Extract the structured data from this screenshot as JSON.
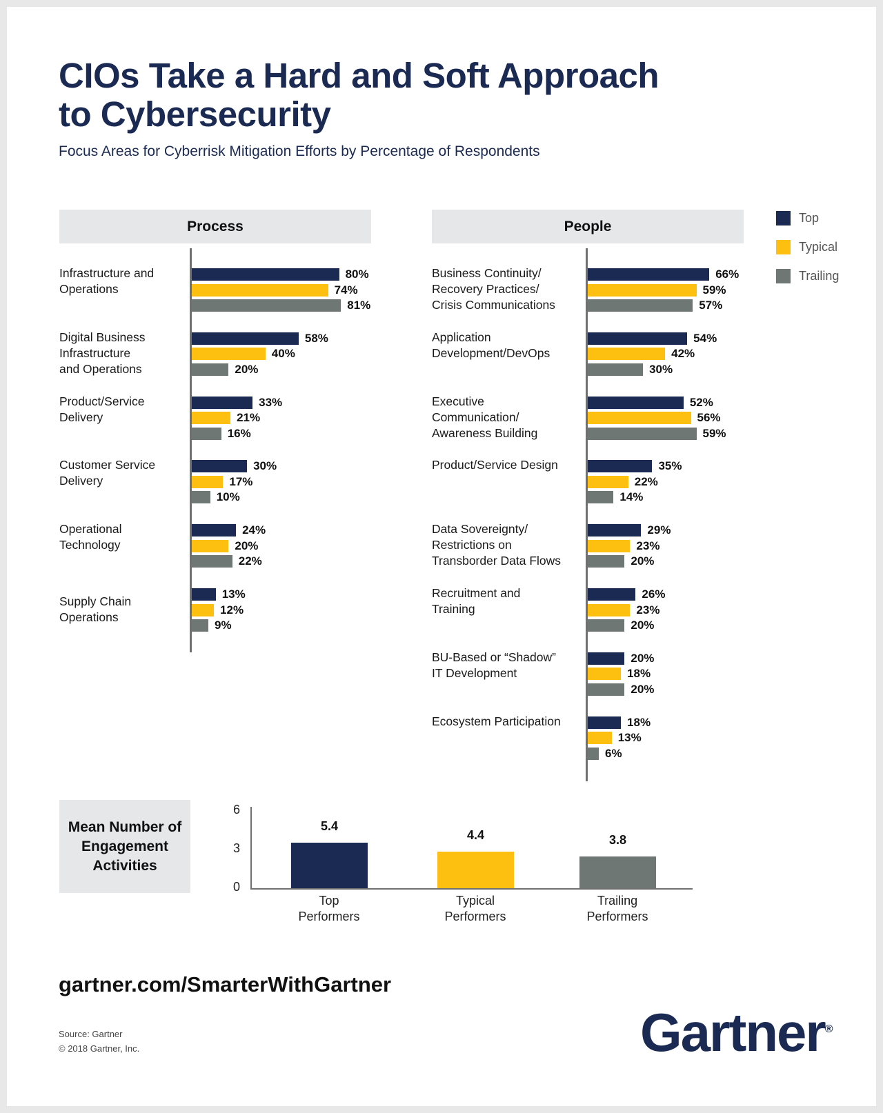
{
  "title_line1": "CIOs Take a Hard and Soft Approach",
  "title_line2": "to Cybersecurity",
  "subtitle": "Focus Areas for Cyberrisk Mitigation Efforts by Percentage of Respondents",
  "colors": {
    "top": "#1b2a52",
    "typical": "#fdc010",
    "trailing": "#6f7774"
  },
  "legend": [
    "Top",
    "Typical",
    "Trailing"
  ],
  "chart_data": [
    {
      "type": "bar",
      "orientation": "horizontal",
      "title": "Process",
      "unit": "%",
      "categories": [
        "Infrastructure and\nOperations",
        "Digital Business\nInfrastructure\nand Operations",
        "Product/Service\nDelivery",
        "Customer Service\nDelivery",
        "Operational\nTechnology",
        "Supply Chain\nOperations"
      ],
      "series": [
        {
          "name": "Top",
          "values": [
            80,
            58,
            33,
            30,
            24,
            13
          ]
        },
        {
          "name": "Typical",
          "values": [
            74,
            40,
            21,
            17,
            20,
            12
          ]
        },
        {
          "name": "Trailing",
          "values": [
            81,
            20,
            16,
            10,
            22,
            9
          ]
        }
      ]
    },
    {
      "type": "bar",
      "orientation": "horizontal",
      "title": "People",
      "unit": "%",
      "categories": [
        "Business Continuity/\nRecovery Practices/\nCrisis Communications",
        "Application\nDevelopment/DevOps",
        "Executive\nCommunication/\nAwareness Building",
        "Product/Service Design",
        "Data Sovereignty/\nRestrictions on\nTransborder Data Flows",
        "Recruitment and\nTraining",
        "BU-Based or “Shadow”\nIT Development",
        "Ecosystem Participation"
      ],
      "series": [
        {
          "name": "Top",
          "values": [
            66,
            54,
            52,
            35,
            29,
            26,
            20,
            18
          ]
        },
        {
          "name": "Typical",
          "values": [
            59,
            42,
            56,
            22,
            23,
            23,
            18,
            13
          ]
        },
        {
          "name": "Trailing",
          "values": [
            57,
            30,
            59,
            14,
            20,
            20,
            20,
            6
          ]
        }
      ]
    },
    {
      "type": "bar",
      "title": "Mean Number of Engagement Activities",
      "categories": [
        "Top\nPerformers",
        "Typical\nPerformers",
        "Trailing\nPerformers"
      ],
      "values": [
        5.4,
        4.4,
        3.8
      ],
      "yticks": [
        0,
        3,
        6
      ],
      "ylim": [
        0,
        6
      ]
    }
  ],
  "footer": {
    "url": "gartner.com/SmarterWithGartner",
    "source": "Source: Gartner",
    "copyright": "© 2018 Gartner, Inc.",
    "logo_text": "Gartner"
  }
}
